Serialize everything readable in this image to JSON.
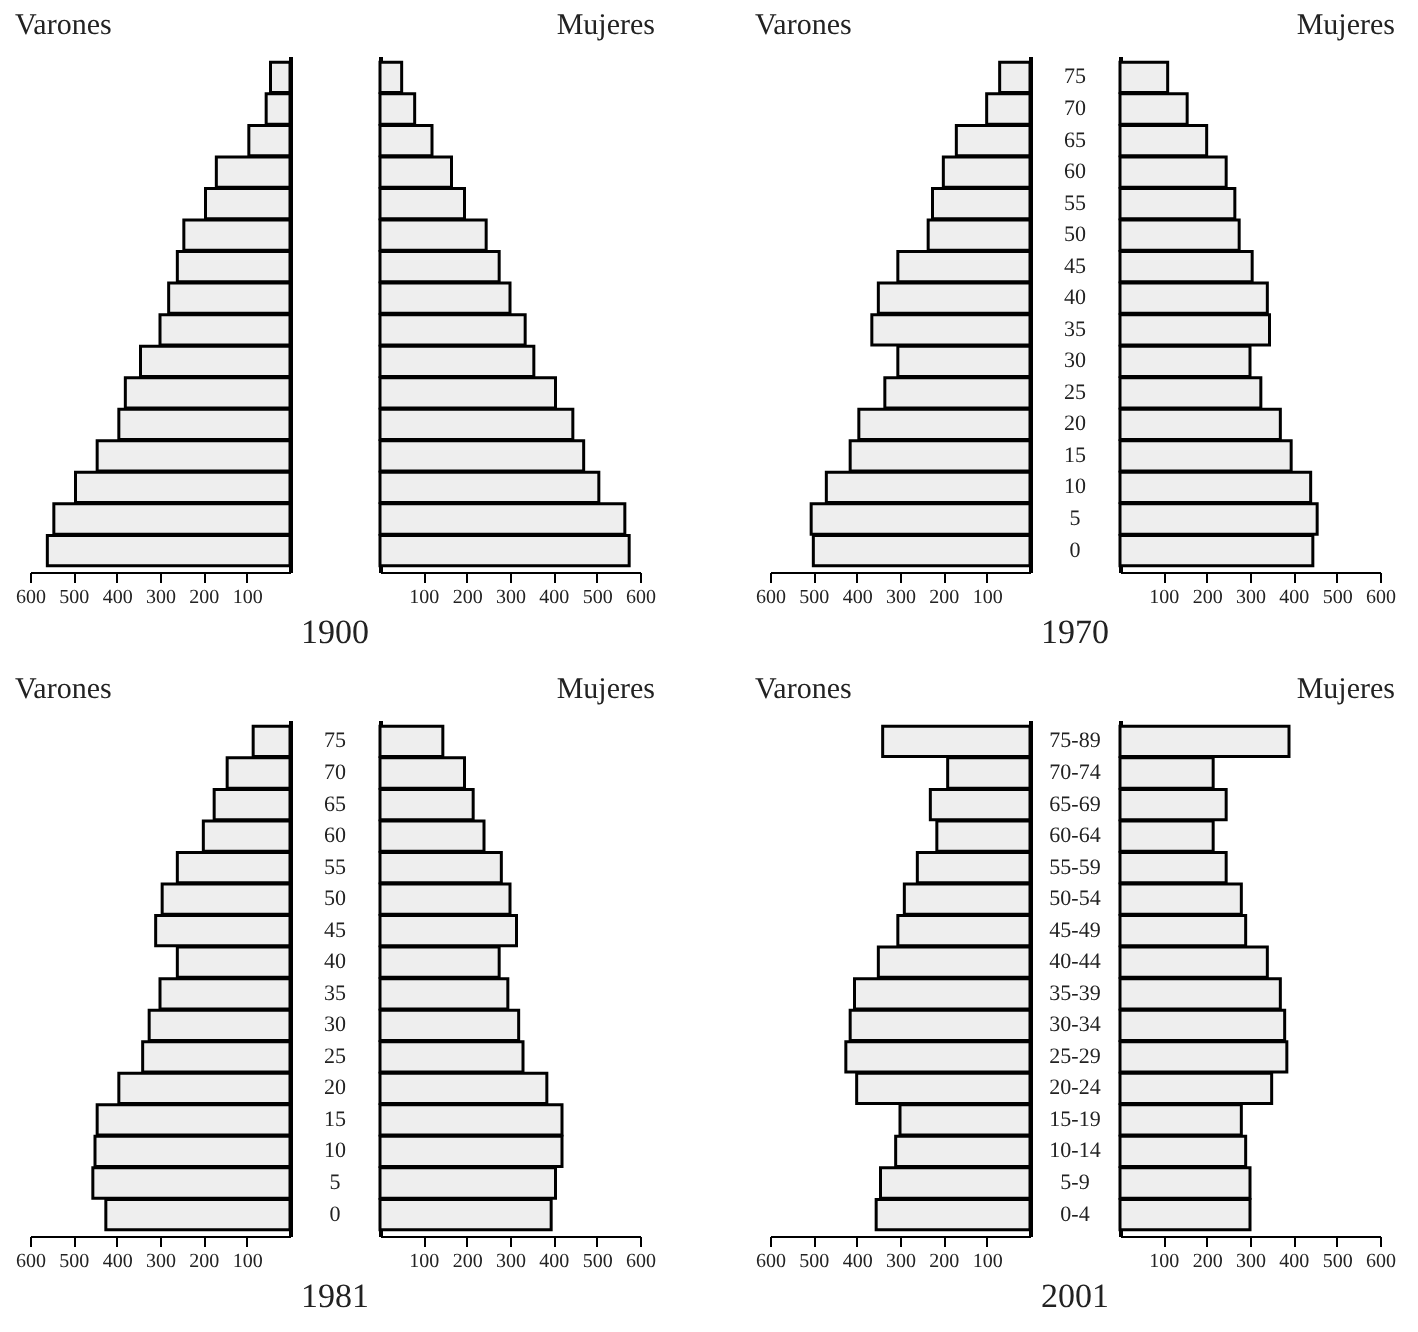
{
  "chart_data": [
    {
      "type": "bar",
      "orientation": "horizontal",
      "title": "Varones",
      "categories": [
        null,
        null,
        null,
        null,
        null,
        null,
        null,
        null,
        null,
        null,
        null,
        null,
        null,
        null,
        null,
        null
      ],
      "values": [
        45,
        55,
        95,
        170,
        195,
        245,
        260,
        280,
        300,
        345,
        380,
        395,
        445,
        495,
        545,
        560
      ],
      "color": "#eeeeee",
      "xlim": [
        600,
        0
      ],
      "xticks": [
        600,
        500,
        400,
        300,
        200,
        100
      ],
      "tick_labels": "x"
    },
    {
      "type": "bar",
      "orientation": "horizontal",
      "title": "Mujeres",
      "xlabel": "1900",
      "categories": [
        null,
        null,
        null,
        null,
        null,
        null,
        null,
        null,
        null,
        null,
        null,
        null,
        null,
        null,
        null,
        null
      ],
      "values": [
        50,
        80,
        120,
        165,
        195,
        245,
        275,
        300,
        335,
        355,
        405,
        445,
        470,
        505,
        565,
        575
      ],
      "color": "#eeeeee",
      "xlim": [
        0,
        600
      ],
      "xticks": [
        100,
        200,
        300,
        400,
        500,
        600
      ],
      "tick_labels": "x"
    },
    {
      "type": "bar",
      "orientation": "horizontal",
      "title": "Varones",
      "categories": [
        "75",
        "70",
        "65",
        "60",
        "55",
        "50",
        "45",
        "40",
        "35",
        "30",
        "25",
        "20",
        "15",
        "10",
        "5",
        "0"
      ],
      "values": [
        70,
        100,
        170,
        200,
        225,
        235,
        305,
        350,
        365,
        305,
        335,
        395,
        415,
        470,
        505,
        500
      ],
      "color": "#eeeeee",
      "xlim": [
        600,
        0
      ],
      "xticks": [
        600,
        500,
        400,
        300,
        200,
        100
      ]
    },
    {
      "type": "bar",
      "orientation": "horizontal",
      "title": "Mujeres",
      "xlabel": "1970",
      "categories": [
        null,
        null,
        null,
        null,
        null,
        null,
        null,
        null,
        null,
        null,
        null,
        null,
        null,
        null,
        null,
        null
      ],
      "values": [
        110,
        155,
        200,
        245,
        265,
        275,
        305,
        340,
        345,
        300,
        325,
        370,
        395,
        440,
        455,
        445
      ],
      "color": "#eeeeee",
      "xlim": [
        0,
        600
      ],
      "xticks": [
        100,
        200,
        300,
        400,
        500,
        600
      ],
      "tick_labels": "x"
    },
    {
      "type": "bar",
      "orientation": "horizontal",
      "title": "Varones",
      "categories": [
        "75",
        "70",
        "65",
        "60",
        "55",
        "50",
        "45",
        "40",
        "35",
        "30",
        "25",
        "20",
        "15",
        "10",
        "5",
        "0"
      ],
      "values": [
        85,
        145,
        175,
        200,
        260,
        295,
        310,
        260,
        300,
        325,
        340,
        395,
        445,
        450,
        455,
        425
      ],
      "color": "#eeeeee",
      "xlim": [
        600,
        0
      ],
      "xticks": [
        600,
        500,
        400,
        300,
        200,
        100
      ]
    },
    {
      "type": "bar",
      "orientation": "horizontal",
      "title": "Mujeres",
      "xlabel": "1981",
      "categories": [
        null,
        null,
        null,
        null,
        null,
        null,
        null,
        null,
        null,
        null,
        null,
        null,
        null,
        null,
        null,
        null
      ],
      "values": [
        145,
        195,
        215,
        240,
        280,
        300,
        315,
        275,
        295,
        320,
        330,
        385,
        420,
        420,
        405,
        395
      ],
      "color": "#eeeeee",
      "xlim": [
        0,
        600
      ],
      "xticks": [
        100,
        200,
        300,
        400,
        500,
        600
      ],
      "tick_labels": "x"
    },
    {
      "type": "bar",
      "orientation": "horizontal",
      "title": "Varones",
      "categories": [
        "75-89",
        "70-74",
        "65-69",
        "60-64",
        "55-59",
        "50-54",
        "45-49",
        "40-44",
        "35-39",
        "30-34",
        "25-29",
        "20-24",
        "15-19",
        "10-14",
        "5-9",
        "0-4"
      ],
      "values": [
        340,
        190,
        230,
        215,
        260,
        290,
        305,
        350,
        405,
        415,
        425,
        400,
        300,
        310,
        345,
        355
      ],
      "color": "#eeeeee",
      "xlim": [
        600,
        0
      ],
      "xticks": [
        600,
        500,
        400,
        300,
        200,
        100
      ]
    },
    {
      "type": "bar",
      "orientation": "horizontal",
      "title": "Mujeres",
      "xlabel": "2001",
      "categories": [
        null,
        null,
        null,
        null,
        null,
        null,
        null,
        null,
        null,
        null,
        null,
        null,
        null,
        null,
        null,
        null
      ],
      "values": [
        390,
        215,
        245,
        215,
        245,
        280,
        290,
        340,
        370,
        380,
        385,
        350,
        280,
        290,
        300,
        300
      ],
      "color": "#eeeeee",
      "xlim": [
        0,
        600
      ],
      "xticks": [
        100,
        200,
        300,
        400,
        500,
        600
      ],
      "tick_labels": "x"
    }
  ]
}
